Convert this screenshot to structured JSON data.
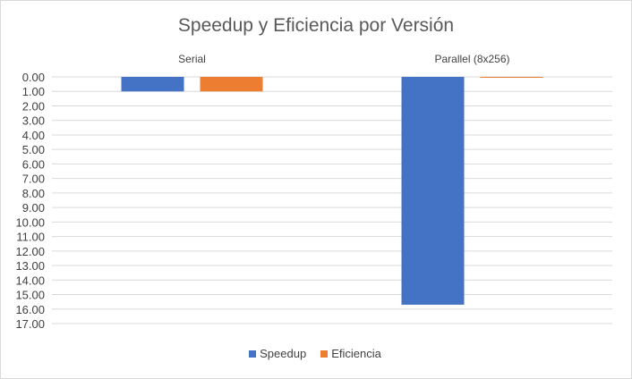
{
  "chart_data": {
    "type": "bar",
    "title": "Speedup y Eficiencia por Versión",
    "categories": [
      "Serial",
      "Parallel (8x256)"
    ],
    "series": [
      {
        "name": "Speedup",
        "values": [
          1.0,
          15.7
        ],
        "color": "#4472c4"
      },
      {
        "name": "Eficiencia",
        "values": [
          1.0,
          0.06
        ],
        "color": "#ed7d31"
      }
    ],
    "ylim": [
      0,
      17
    ],
    "y_axis_reversed": true,
    "y_ticks": [
      "0.00",
      "1.00",
      "2.00",
      "3.00",
      "4.00",
      "5.00",
      "6.00",
      "7.00",
      "8.00",
      "9.00",
      "10.00",
      "11.00",
      "12.00",
      "13.00",
      "14.00",
      "15.00",
      "16.00",
      "17.00"
    ],
    "grid": true,
    "category_labels_position": "top",
    "legend_position": "bottom"
  }
}
